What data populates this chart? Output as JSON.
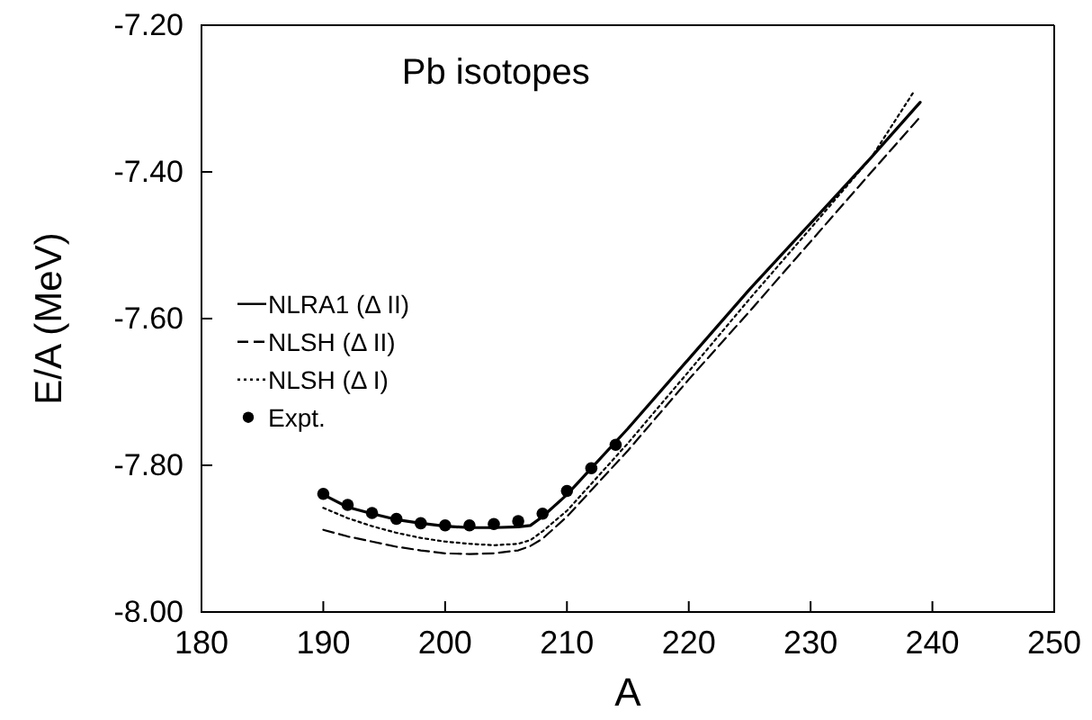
{
  "chart_data": {
    "type": "line",
    "title": "Pb isotopes",
    "xlabel": "A",
    "ylabel": "E/A (MeV)",
    "xlim": [
      180,
      250
    ],
    "xticks": [
      180,
      190,
      200,
      210,
      220,
      230,
      240,
      250
    ],
    "ylim": [
      -8,
      -7.2
    ],
    "yticks": [
      {
        "value": -8,
        "label": "-8.00"
      },
      {
        "value": -7.8,
        "label": "-7.80"
      },
      {
        "value": -7.6,
        "label": "-7.60"
      },
      {
        "value": -7.4,
        "label": "-7.40"
      },
      {
        "value": -7.2,
        "label": "-7.20"
      }
    ],
    "legend": "left",
    "grid": false,
    "series": [
      {
        "name": "NLRA1 (Δ II)",
        "color": "#000000",
        "line_style": "solid",
        "marker": "none",
        "x": [
          190,
          192,
          194,
          196,
          198,
          200,
          202,
          204,
          206,
          207,
          208,
          210,
          215,
          220,
          225,
          230,
          235,
          239
        ],
        "values": [
          -7.84,
          -7.857,
          -7.866,
          -7.874,
          -7.879,
          -7.883,
          -7.885,
          -7.885,
          -7.884,
          -7.882,
          -7.87,
          -7.84,
          -7.75,
          -7.655,
          -7.56,
          -7.47,
          -7.38,
          -7.305
        ]
      },
      {
        "name": "NLSH (Δ II)",
        "color": "#000000",
        "line_style": "dashed",
        "marker": "none",
        "x": [
          190,
          192,
          194,
          196,
          198,
          200,
          202,
          204,
          206,
          207,
          208,
          210,
          215,
          220,
          225,
          230,
          235,
          239
        ],
        "values": [
          -7.888,
          -7.897,
          -7.904,
          -7.911,
          -7.916,
          -7.92,
          -7.921,
          -7.92,
          -7.916,
          -7.91,
          -7.9,
          -7.87,
          -7.78,
          -7.683,
          -7.59,
          -7.495,
          -7.4,
          -7.325
        ]
      },
      {
        "name": "NLSH (Δ I)",
        "color": "#000000",
        "line_style": "dotted",
        "marker": "none",
        "x": [
          190,
          192,
          194,
          196,
          198,
          200,
          202,
          204,
          206,
          207,
          208,
          210,
          215,
          220,
          225,
          230,
          235,
          238.5
        ],
        "values": [
          -7.858,
          -7.872,
          -7.883,
          -7.892,
          -7.899,
          -7.904,
          -7.907,
          -7.909,
          -7.907,
          -7.902,
          -7.89,
          -7.862,
          -7.77,
          -7.672,
          -7.573,
          -7.477,
          -7.38,
          -7.29
        ]
      },
      {
        "name": "Expt.",
        "type": "scatter",
        "color": "#000000",
        "marker": "circle",
        "x": [
          190,
          192,
          194,
          196,
          198,
          200,
          202,
          204,
          206,
          208,
          210,
          212,
          214
        ],
        "values": [
          -7.839,
          -7.854,
          -7.865,
          -7.873,
          -7.879,
          -7.882,
          -7.882,
          -7.88,
          -7.876,
          -7.866,
          -7.835,
          -7.804,
          -7.772
        ]
      }
    ]
  }
}
